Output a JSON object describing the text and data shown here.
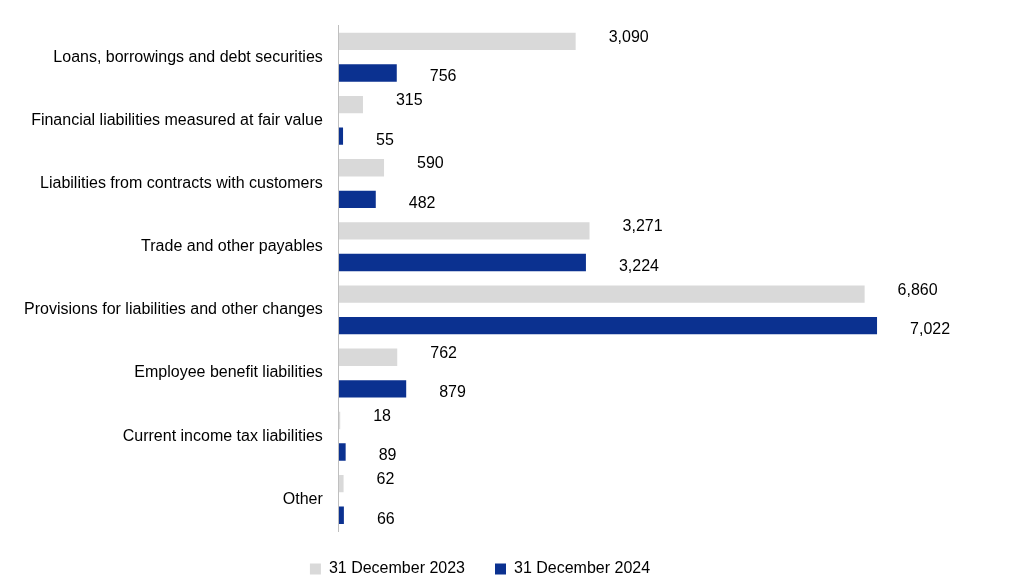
{
  "chart_data": {
    "type": "bar",
    "orientation": "horizontal",
    "categories": [
      "Loans, borrowings and debt securities",
      "Financial liabilities measured at fair value",
      "Liabilities from contracts with customers",
      "Trade and other payables",
      "Provisions for liabilities and other changes",
      "Employee benefit liabilities",
      "Current income tax liabilities",
      "Other"
    ],
    "series": [
      {
        "name": "31 December 2023",
        "color": "#d9d9d9",
        "values": [
          3090,
          315,
          590,
          3271,
          6860,
          762,
          18,
          62
        ],
        "value_labels": [
          "3,090",
          "315",
          "590",
          "3,271",
          "6,860",
          "762",
          "18",
          "62"
        ]
      },
      {
        "name": "31 December 2024",
        "color": "#0b3190",
        "values": [
          756,
          55,
          482,
          3224,
          7022,
          879,
          89,
          66
        ],
        "value_labels": [
          "756",
          "55",
          "482",
          "3,224",
          "7,022",
          "879",
          "89",
          "66"
        ]
      }
    ],
    "legend": "bottom",
    "grid": false,
    "tick_labels": "y"
  }
}
